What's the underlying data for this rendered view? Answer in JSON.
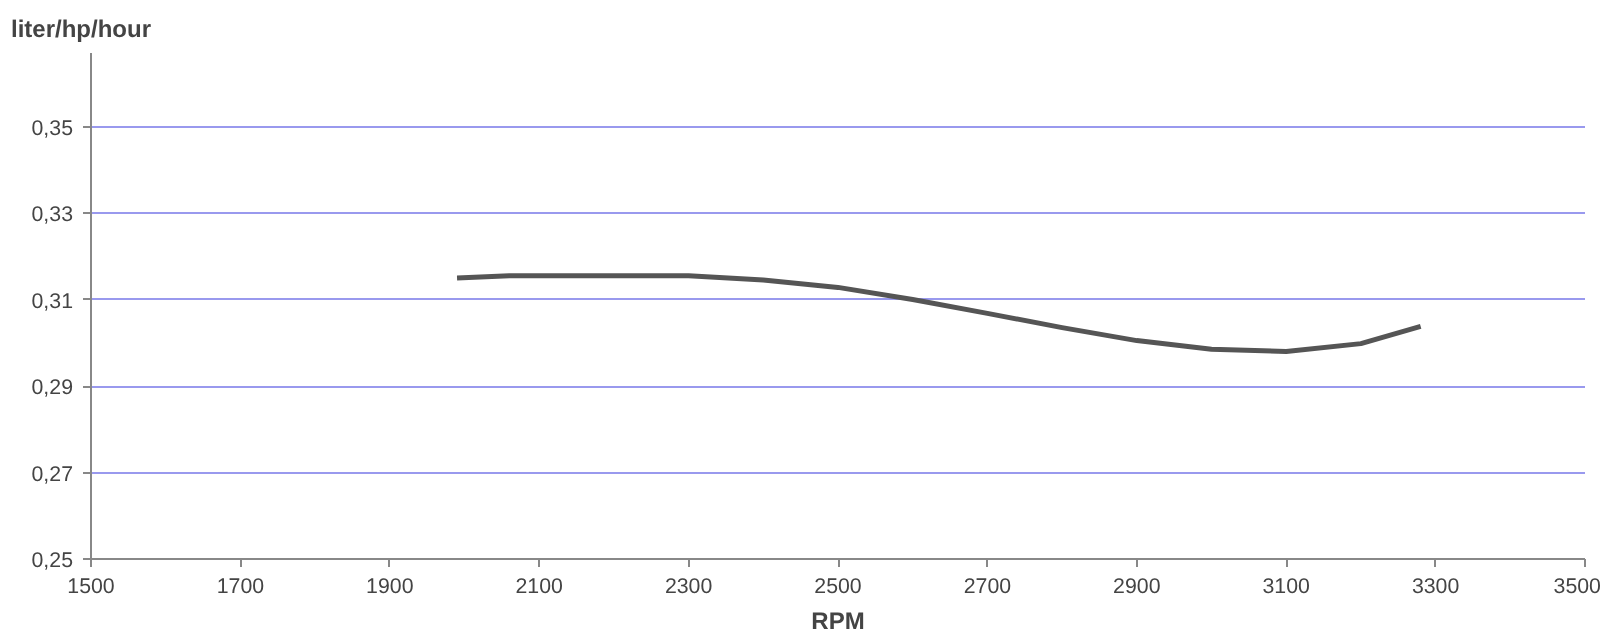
{
  "chart_data": {
    "type": "line",
    "ylabel": "liter/hp/hour",
    "xlabel": "RPM",
    "x": [
      1990,
      2060,
      2200,
      2300,
      2400,
      2500,
      2600,
      2700,
      2800,
      2900,
      3000,
      3100,
      3200,
      3280
    ],
    "series": [
      {
        "color": "#555555",
        "values": [
          0.315,
          0.3155,
          0.3155,
          0.3155,
          0.3145,
          0.3128,
          0.31,
          0.3068,
          0.3035,
          0.3005,
          0.2985,
          0.298,
          0.2998,
          0.3038
        ]
      }
    ],
    "xlim": [
      1500,
      3500
    ],
    "xticks": [
      1500,
      1700,
      1900,
      2100,
      2300,
      2500,
      2700,
      2900,
      3100,
      3300,
      3500
    ],
    "ylim": [
      0.25,
      0.367
    ],
    "yticks": [
      {
        "value": 0.25,
        "label": "0,25"
      },
      {
        "value": 0.27,
        "label": "0,27"
      },
      {
        "value": 0.29,
        "label": "0,29"
      },
      {
        "value": 0.31,
        "label": "0,31"
      },
      {
        "value": 0.33,
        "label": "0,33"
      },
      {
        "value": 0.35,
        "label": "0,35"
      }
    ],
    "grid": "y",
    "marker": "none",
    "line_style": "solid"
  }
}
